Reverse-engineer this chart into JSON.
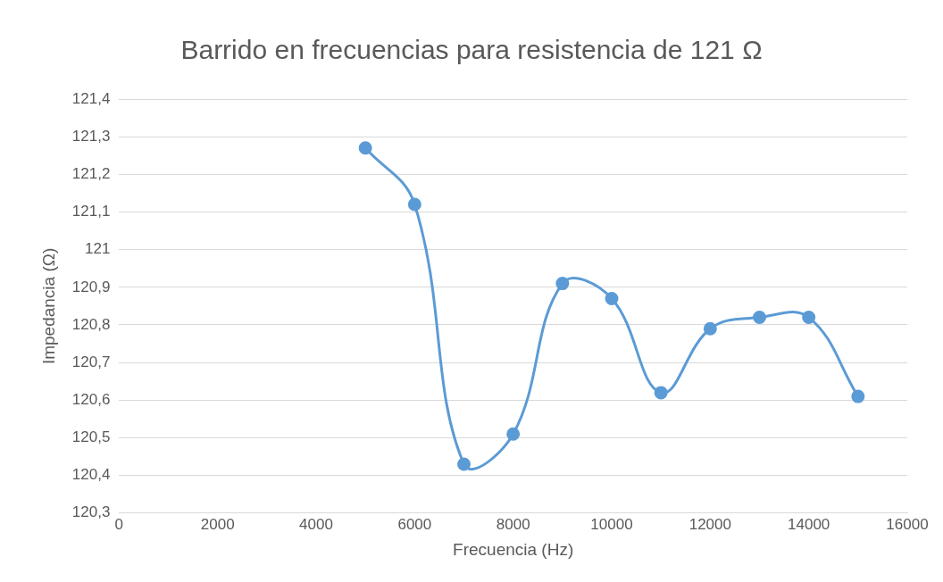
{
  "chart_data": {
    "type": "line",
    "title": "Barrido en frecuencias para resistencia de 121 Ω",
    "xlabel": "Frecuencia (Hz)",
    "ylabel": "Impedancia (Ω)",
    "x": [
      5000,
      6000,
      7000,
      8000,
      9000,
      10000,
      11000,
      12000,
      13000,
      14000,
      15000
    ],
    "series": [
      {
        "color": "#5b9bd5",
        "values": [
          121.27,
          121.12,
          120.43,
          120.51,
          120.91,
          120.87,
          120.62,
          120.79,
          120.82,
          120.82,
          120.61
        ]
      }
    ],
    "xlim": [
      0,
      16000
    ],
    "xticks": [
      0,
      2000,
      4000,
      6000,
      8000,
      10000,
      12000,
      14000,
      16000
    ],
    "ylim": [
      120.3,
      121.4
    ],
    "yticks": [
      {
        "value": 120.3,
        "label": "120,3"
      },
      {
        "value": 120.4,
        "label": "120,4"
      },
      {
        "value": 120.5,
        "label": "120,5"
      },
      {
        "value": 120.6,
        "label": "120,6"
      },
      {
        "value": 120.7,
        "label": "120,7"
      },
      {
        "value": 120.8,
        "label": "120,8"
      },
      {
        "value": 120.9,
        "label": "120,9"
      },
      121,
      {
        "value": 121.1,
        "label": "121,1"
      },
      {
        "value": 121.2,
        "label": "121,2"
      },
      {
        "value": 121.3,
        "label": "121,3"
      },
      {
        "value": 121.4,
        "label": "121,4"
      }
    ],
    "grid": "y",
    "marker": "circle",
    "line_style": "solid",
    "legend": false
  }
}
